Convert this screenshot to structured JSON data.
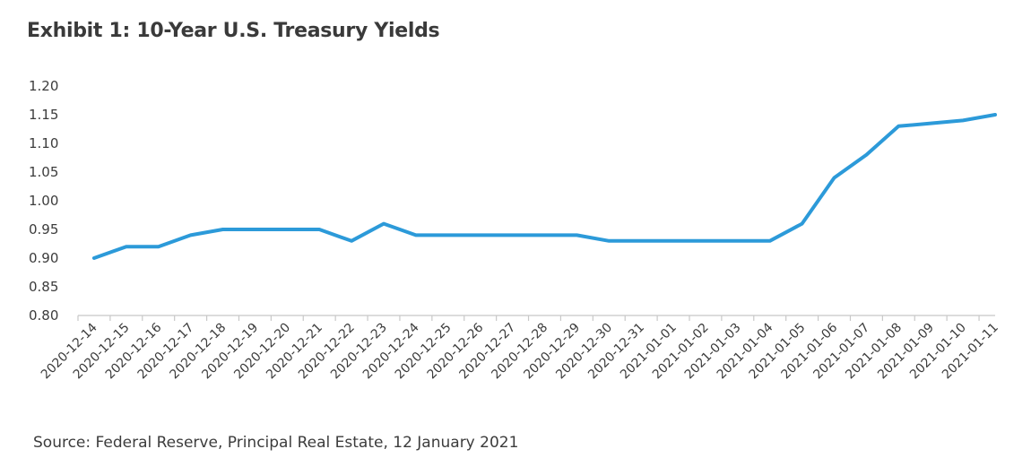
{
  "chart_data": {
    "type": "line",
    "title": "Exhibit 1: 10-Year U.S. Treasury Yields",
    "source": "Source: Federal Reserve, Principal Real Estate, 12 January 2021",
    "x": [
      "2020-12-14",
      "2020-12-15",
      "2020-12-16",
      "2020-12-17",
      "2020-12-18",
      "2020-12-19",
      "2020-12-20",
      "2020-12-21",
      "2020-12-22",
      "2020-12-23",
      "2020-12-24",
      "2020-12-25",
      "2020-12-26",
      "2020-12-27",
      "2020-12-28",
      "2020-12-29",
      "2020-12-30",
      "2020-12-31",
      "2021-01-01",
      "2021-01-02",
      "2021-01-03",
      "2021-01-04",
      "2021-01-05",
      "2021-01-06",
      "2021-01-07",
      "2021-01-08",
      "2021-01-09",
      "2021-01-10",
      "2021-01-11"
    ],
    "y": [
      0.9,
      0.92,
      0.92,
      0.94,
      0.95,
      0.95,
      0.95,
      0.95,
      0.93,
      0.96,
      0.94,
      0.94,
      0.94,
      0.94,
      0.94,
      0.94,
      0.93,
      0.93,
      0.93,
      0.93,
      0.93,
      0.93,
      0.96,
      1.04,
      1.08,
      1.13,
      1.135,
      1.14,
      1.15
    ],
    "yticks": [
      "1.20",
      "1.15",
      "1.10",
      "1.05",
      "1.00",
      "0.95",
      "0.90",
      "0.85",
      "0.80"
    ],
    "ylim": [
      0.8,
      1.2
    ],
    "grid": false,
    "line_color": "#2c9ad9",
    "axis_color": "#c8c8c8"
  }
}
